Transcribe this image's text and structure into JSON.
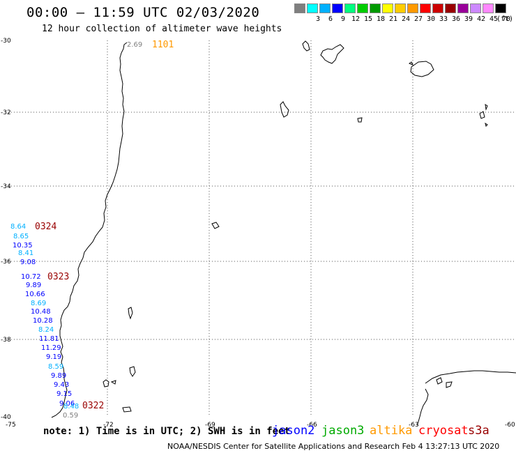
{
  "header": {
    "title": "00:00 – 11:59 UTC 02/03/2020",
    "subtitle": "12 hour collection of altimeter wave heights"
  },
  "legend": {
    "unit": "(ft)",
    "bins": [
      {
        "label": "",
        "color": "#7f7f7f"
      },
      {
        "label": "3",
        "color": "#00ffff"
      },
      {
        "label": "6",
        "color": "#00b0ff"
      },
      {
        "label": "9",
        "color": "#0000ff"
      },
      {
        "label": "12",
        "color": "#00ff7f"
      },
      {
        "label": "15",
        "color": "#00cc00"
      },
      {
        "label": "18",
        "color": "#009900"
      },
      {
        "label": "21",
        "color": "#ffff00"
      },
      {
        "label": "24",
        "color": "#ffcc00"
      },
      {
        "label": "27",
        "color": "#ff9900"
      },
      {
        "label": "30",
        "color": "#ff0000"
      },
      {
        "label": "33",
        "color": "#cc0000"
      },
      {
        "label": "36",
        "color": "#990000"
      },
      {
        "label": "39",
        "color": "#990099"
      },
      {
        "label": "42",
        "color": "#cc88ff"
      },
      {
        "label": "45",
        "color": "#ff88ff"
      },
      {
        "label": "70",
        "color": "#000000"
      }
    ]
  },
  "axes": {
    "lat_labels": [
      "-30",
      "-32",
      "-34",
      "-36",
      "-38",
      "-40"
    ],
    "lon_labels": [
      "-75",
      "-72",
      "-69",
      "-66",
      "-63",
      "-60"
    ]
  },
  "passes": [
    {
      "time": "1101",
      "color": "#ff9900"
    },
    {
      "time": "0324",
      "color": "#990000"
    },
    {
      "time": "0323",
      "color": "#990000"
    },
    {
      "time": "0322",
      "color": "#990000"
    }
  ],
  "observations": [
    {
      "value": "2.69",
      "color": "#7f7f7f"
    },
    {
      "value": "8.64",
      "color": "#00b0ff"
    },
    {
      "value": "8.65",
      "color": "#00b0ff"
    },
    {
      "value": "10.35",
      "color": "#0000ff"
    },
    {
      "value": "8.41",
      "color": "#00b0ff"
    },
    {
      "value": "9.08",
      "color": "#0000ff"
    },
    {
      "value": "10.72",
      "color": "#0000ff"
    },
    {
      "value": "9.89",
      "color": "#0000ff"
    },
    {
      "value": "10.66",
      "color": "#0000ff"
    },
    {
      "value": "8.69",
      "color": "#00b0ff"
    },
    {
      "value": "10.48",
      "color": "#0000ff"
    },
    {
      "value": "10.28",
      "color": "#0000ff"
    },
    {
      "value": "8.24",
      "color": "#00b0ff"
    },
    {
      "value": "11.81",
      "color": "#0000ff"
    },
    {
      "value": "11.29",
      "color": "#0000ff"
    },
    {
      "value": "9.19",
      "color": "#0000ff"
    },
    {
      "value": "8.59",
      "color": "#00b0ff"
    },
    {
      "value": "9.89",
      "color": "#0000ff"
    },
    {
      "value": "9.43",
      "color": "#0000ff"
    },
    {
      "value": "9.15",
      "color": "#0000ff"
    },
    {
      "value": "9.06",
      "color": "#0000ff"
    },
    {
      "value": "8.48",
      "color": "#00b0ff"
    },
    {
      "value": "0.59",
      "color": "#7f7f7f"
    }
  ],
  "footer": {
    "note": "note: 1) Time is in UTC; 2) SWH is in feet",
    "satellites": [
      {
        "name": "jason2",
        "color": "#0000ff"
      },
      {
        "name": "jason3",
        "color": "#00aa00"
      },
      {
        "name": "altika",
        "color": "#ff9900"
      },
      {
        "name": "cryosat",
        "color": "#ff0000"
      },
      {
        "name": "s3a",
        "color": "#990000"
      }
    ],
    "credit": "NOAA/NESDIS Center for Satellite Applications and Research    Feb  4 13:27:13 UTC 2020"
  }
}
